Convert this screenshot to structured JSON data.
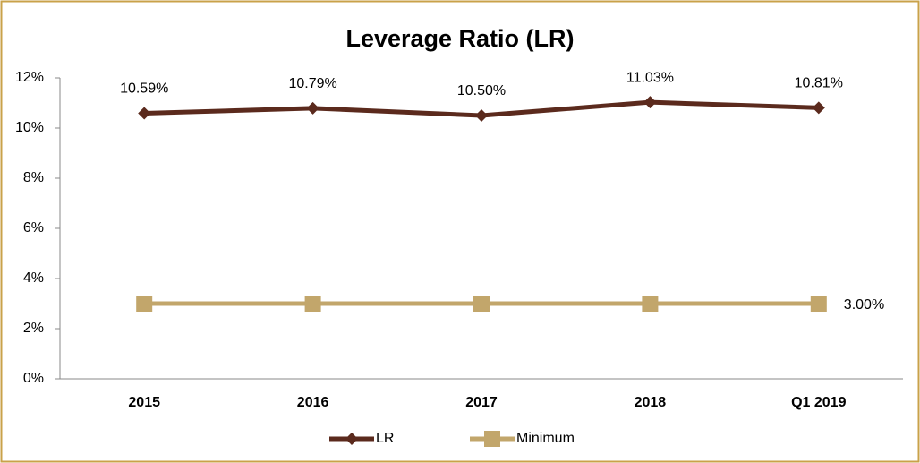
{
  "chart_data": {
    "type": "line",
    "title": "Leverage Ratio (LR)",
    "categories": [
      "2015",
      "2016",
      "2017",
      "2018",
      "Q1 2019"
    ],
    "series": [
      {
        "name": "LR",
        "color": "#5b2a1d",
        "marker": "diamond",
        "values": [
          10.59,
          10.79,
          10.5,
          11.03,
          10.81
        ],
        "value_labels": [
          "10.59%",
          "10.79%",
          "10.50%",
          "11.03%",
          "10.81%"
        ]
      },
      {
        "name": "Minimum",
        "color": "#c2a66b",
        "marker": "square",
        "values": [
          3,
          3,
          3,
          3,
          3
        ],
        "value_labels": [
          null,
          null,
          null,
          null,
          "3.00%"
        ]
      }
    ],
    "ylim": [
      0,
      12
    ],
    "yticks": [
      {
        "value": 0,
        "label": "0%"
      },
      {
        "value": 2,
        "label": "2%"
      },
      {
        "value": 4,
        "label": "4%"
      },
      {
        "value": 6,
        "label": "6%"
      },
      {
        "value": 8,
        "label": "8%"
      },
      {
        "value": 10,
        "label": "10%"
      },
      {
        "value": 12,
        "label": "12%"
      }
    ],
    "grid": false,
    "legend": "bottom"
  }
}
